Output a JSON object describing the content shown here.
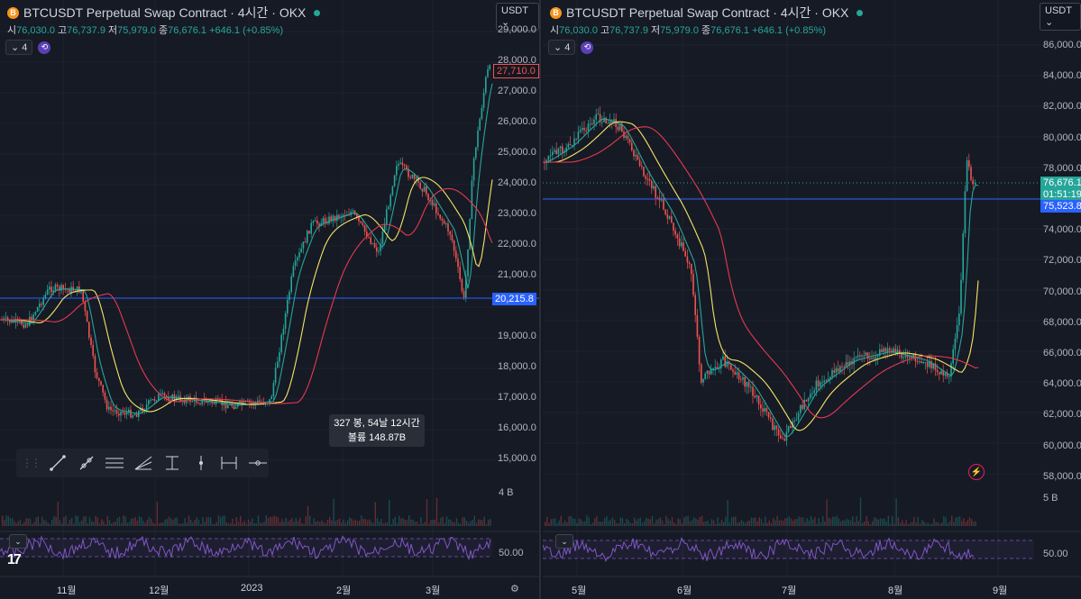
{
  "left": {
    "title": "BTCUSDT Perpetual Swap Contract · 4시간 · OKX",
    "coin_letter": "B",
    "ohlc": {
      "o_label": "시",
      "o": "76,030.0",
      "h_label": "고",
      "h": "76,737.9",
      "l_label": "저",
      "l": "75,979.0",
      "c_label": "종",
      "c": "76,676.1",
      "chg": "+646.1 (+0.85%)"
    },
    "indicator_count": "4",
    "currency": "USDT",
    "price_ticks": [
      "29,000.0",
      "28,000.0",
      "27,000.0",
      "26,000.0",
      "25,000.0",
      "24,000.0",
      "23,000.0",
      "22,000.0",
      "21,000.0",
      "19,000.0",
      "18,000.0",
      "17,000.0",
      "16,000.0",
      "15,000.0"
    ],
    "last_price": "27,710.0",
    "hline_price": "20,215.8",
    "volume_label": "4 B",
    "rsi_label": "50.00",
    "time_ticks": [
      "11월",
      "12월",
      "2023",
      "2월",
      "3월"
    ],
    "tooltip": {
      "line1": "327 봉, 54날 12시간",
      "line2": "볼륨 148.87B"
    }
  },
  "right": {
    "title": "BTCUSDT Perpetual Swap Contract · 4시간 · OKX",
    "coin_letter": "B",
    "ohlc": {
      "o_label": "시",
      "o": "76,030.0",
      "h_label": "고",
      "h": "76,737.9",
      "l_label": "저",
      "l": "75,979.0",
      "c_label": "종",
      "c": "76,676.1",
      "chg": "+646.1 (+0.85%)"
    },
    "indicator_count": "4",
    "currency": "USDT",
    "price_ticks": [
      "86,000.0",
      "84,000.0",
      "82,000.0",
      "80,000.0",
      "78,000.0",
      "74,000.0",
      "72,000.0",
      "70,000.0",
      "68,000.0",
      "66,000.0",
      "64,000.0",
      "62,000.0",
      "60,000.0",
      "58,000.0"
    ],
    "last_price": "76,676.1",
    "countdown": "01:51:19",
    "hline_price": "75,523.8",
    "volume_label": "5 B",
    "rsi_label": "50.00",
    "time_ticks": [
      "5월",
      "6월",
      "7월",
      "8월",
      "9월"
    ]
  },
  "colors": {
    "up": "#26a69a",
    "down": "#ef5350",
    "ma_fast": "#26a69a",
    "ma_mid": "#f5e663",
    "ma_slow": "#e53950",
    "hline": "#2962ff",
    "rsi": "#7e57c2"
  }
}
